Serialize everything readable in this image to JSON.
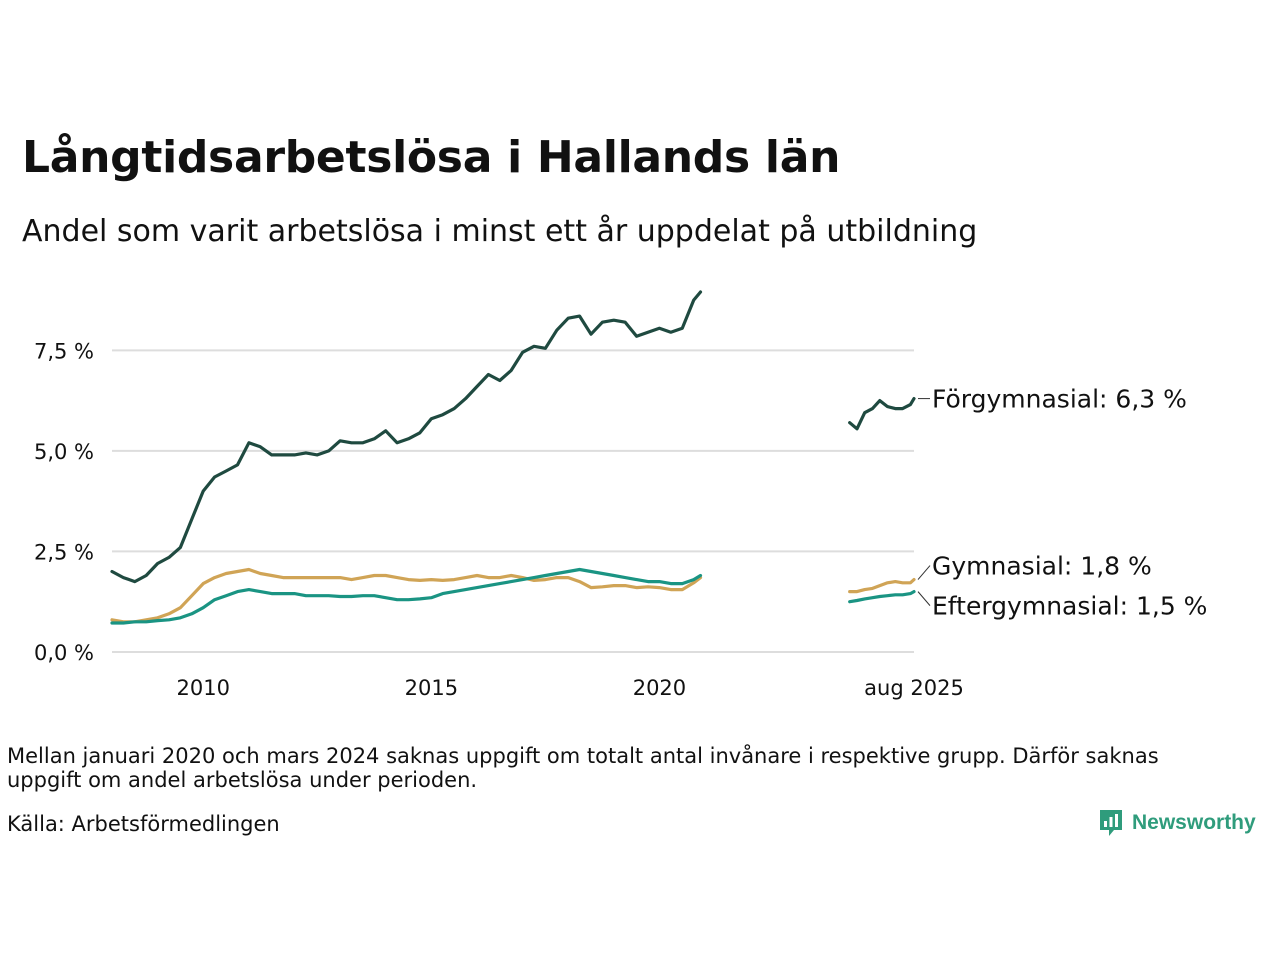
{
  "title": "Långtidsarbetslösa i Hallands län",
  "subtitle": "Andel som varit arbetslösa i minst ett år uppdelat på utbildning",
  "note": "Mellan januari 2020 och mars 2024 saknas uppgift om totalt antal invånare i respektive grupp. Därför saknas uppgift om andel arbetslösa under perioden.",
  "source": "Källa: Arbetsförmedlingen",
  "brand": "Newsworthy",
  "chart_data": {
    "type": "line",
    "title": "Långtidsarbetslösa i Hallands län",
    "subtitle": "Andel som varit arbetslösa i minst ett år uppdelat på utbildning",
    "xlabel": "",
    "ylabel": "",
    "ylim": [
      -0.2,
      9.0
    ],
    "xlim": [
      2008.0,
      2025.58
    ],
    "grid": true,
    "legend": "direct labels at line ends (right)",
    "y_ticks": [
      {
        "value": 0,
        "label": "0,0 %"
      },
      {
        "value": 2.5,
        "label": "2,5 %"
      },
      {
        "value": 5,
        "label": "5,0 %"
      },
      {
        "value": 7.5,
        "label": "7,5 %"
      }
    ],
    "x_ticks": [
      {
        "value": 2010,
        "label": "2010"
      },
      {
        "value": 2015,
        "label": "2015"
      },
      {
        "value": 2020,
        "label": "2020"
      },
      {
        "value": 2025.58,
        "label": "aug 2025"
      }
    ],
    "series": [
      {
        "name": "Förgymnasial",
        "end_label": "Förgymnasial: 6,3 %",
        "color": "#1f4a40",
        "segments": [
          {
            "x": [
              2008.0,
              2008.25,
              2008.5,
              2008.75,
              2009.0,
              2009.25,
              2009.5,
              2009.75,
              2010.0,
              2010.25,
              2010.5,
              2010.75,
              2011.0,
              2011.25,
              2011.5,
              2011.75,
              2012.0,
              2012.25,
              2012.5,
              2012.75,
              2013.0,
              2013.25,
              2013.5,
              2013.75,
              2014.0,
              2014.25,
              2014.5,
              2014.75,
              2015.0,
              2015.25,
              2015.5,
              2015.75,
              2016.0,
              2016.25,
              2016.5,
              2016.75,
              2017.0,
              2017.25,
              2017.5,
              2017.75,
              2018.0,
              2018.25,
              2018.5,
              2018.75,
              2019.0,
              2019.25,
              2019.5,
              2019.75,
              2020.0,
              2020.25,
              2020.5,
              2020.75,
              2020.9
            ],
            "y": [
              2.0,
              1.85,
              1.75,
              1.9,
              2.2,
              2.35,
              2.6,
              3.3,
              4.0,
              4.35,
              4.5,
              4.65,
              5.2,
              5.1,
              4.9,
              4.9,
              4.9,
              4.95,
              4.9,
              5.0,
              5.25,
              5.2,
              5.2,
              5.3,
              5.5,
              5.2,
              5.3,
              5.45,
              5.8,
              5.9,
              6.05,
              6.3,
              6.6,
              6.9,
              6.75,
              7.0,
              7.45,
              7.6,
              7.55,
              8.0,
              8.3,
              8.35,
              7.9,
              8.2,
              8.25,
              8.2,
              7.85,
              7.95,
              8.05,
              7.95,
              8.05,
              8.75,
              8.95
            ]
          },
          {
            "x": [
              2024.17,
              2024.33,
              2024.5,
              2024.67,
              2024.83,
              2025.0,
              2025.17,
              2025.33,
              2025.5,
              2025.58
            ],
            "y": [
              5.7,
              5.55,
              5.95,
              6.05,
              6.25,
              6.1,
              6.05,
              6.05,
              6.15,
              6.3
            ]
          }
        ]
      },
      {
        "name": "Gymnasial",
        "end_label": "Gymnasial: 1,8 %",
        "color": "#d0a456",
        "segments": [
          {
            "x": [
              2008.0,
              2008.25,
              2008.5,
              2008.75,
              2009.0,
              2009.25,
              2009.5,
              2009.75,
              2010.0,
              2010.25,
              2010.5,
              2010.75,
              2011.0,
              2011.25,
              2011.5,
              2011.75,
              2012.0,
              2012.25,
              2012.5,
              2012.75,
              2013.0,
              2013.25,
              2013.5,
              2013.75,
              2014.0,
              2014.25,
              2014.5,
              2014.75,
              2015.0,
              2015.25,
              2015.5,
              2015.75,
              2016.0,
              2016.25,
              2016.5,
              2016.75,
              2017.0,
              2017.25,
              2017.5,
              2017.75,
              2018.0,
              2018.25,
              2018.5,
              2018.75,
              2019.0,
              2019.25,
              2019.5,
              2019.75,
              2020.0,
              2020.25,
              2020.5,
              2020.75,
              2020.9
            ],
            "y": [
              0.8,
              0.75,
              0.75,
              0.8,
              0.85,
              0.95,
              1.1,
              1.4,
              1.7,
              1.85,
              1.95,
              2.0,
              2.05,
              1.95,
              1.9,
              1.85,
              1.85,
              1.85,
              1.85,
              1.85,
              1.85,
              1.8,
              1.85,
              1.9,
              1.9,
              1.85,
              1.8,
              1.78,
              1.8,
              1.78,
              1.8,
              1.85,
              1.9,
              1.85,
              1.85,
              1.9,
              1.85,
              1.78,
              1.8,
              1.85,
              1.85,
              1.75,
              1.6,
              1.62,
              1.65,
              1.65,
              1.6,
              1.62,
              1.6,
              1.55,
              1.55,
              1.72,
              1.85
            ]
          },
          {
            "x": [
              2024.17,
              2024.33,
              2024.5,
              2024.67,
              2024.83,
              2025.0,
              2025.17,
              2025.33,
              2025.5,
              2025.58
            ],
            "y": [
              1.5,
              1.5,
              1.55,
              1.58,
              1.65,
              1.72,
              1.75,
              1.72,
              1.72,
              1.8
            ]
          }
        ]
      },
      {
        "name": "Eftergymnasial",
        "end_label": "Eftergymnasial: 1,5 %",
        "color": "#1a9483",
        "segments": [
          {
            "x": [
              2008.0,
              2008.25,
              2008.5,
              2008.75,
              2009.0,
              2009.25,
              2009.5,
              2009.75,
              2010.0,
              2010.25,
              2010.5,
              2010.75,
              2011.0,
              2011.25,
              2011.5,
              2011.75,
              2012.0,
              2012.25,
              2012.5,
              2012.75,
              2013.0,
              2013.25,
              2013.5,
              2013.75,
              2014.0,
              2014.25,
              2014.5,
              2014.75,
              2015.0,
              2015.25,
              2015.5,
              2015.75,
              2016.0,
              2016.25,
              2016.5,
              2016.75,
              2017.0,
              2017.25,
              2017.5,
              2017.75,
              2018.0,
              2018.25,
              2018.5,
              2018.75,
              2019.0,
              2019.25,
              2019.5,
              2019.75,
              2020.0,
              2020.25,
              2020.5,
              2020.75,
              2020.9
            ],
            "y": [
              0.72,
              0.72,
              0.75,
              0.75,
              0.78,
              0.8,
              0.85,
              0.95,
              1.1,
              1.3,
              1.4,
              1.5,
              1.55,
              1.5,
              1.45,
              1.45,
              1.45,
              1.4,
              1.4,
              1.4,
              1.38,
              1.38,
              1.4,
              1.4,
              1.35,
              1.3,
              1.3,
              1.32,
              1.35,
              1.45,
              1.5,
              1.55,
              1.6,
              1.65,
              1.7,
              1.75,
              1.8,
              1.85,
              1.9,
              1.95,
              2.0,
              2.05,
              2.0,
              1.95,
              1.9,
              1.85,
              1.8,
              1.75,
              1.75,
              1.7,
              1.7,
              1.8,
              1.9
            ]
          },
          {
            "x": [
              2024.17,
              2024.33,
              2024.5,
              2024.67,
              2024.83,
              2025.0,
              2025.17,
              2025.33,
              2025.5,
              2025.58
            ],
            "y": [
              1.25,
              1.28,
              1.32,
              1.35,
              1.38,
              1.4,
              1.42,
              1.42,
              1.45,
              1.5
            ]
          }
        ]
      }
    ]
  }
}
